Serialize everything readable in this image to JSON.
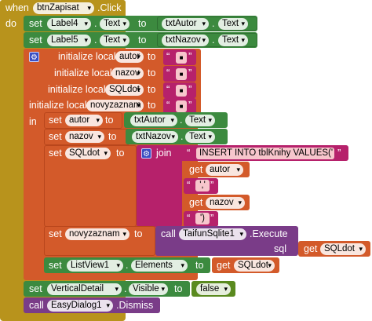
{
  "event": {
    "when_label": "when",
    "component": "btnZapisat",
    "event_name": ".Click",
    "do_label": "do"
  },
  "kw": {
    "set": "set",
    "to": "to",
    "dot": ".",
    "call": "call",
    "in": "in",
    "get": "get",
    "join": "join",
    "init_local": "initialize local",
    "sql": "sql",
    "quote_open": "“",
    "quote_close": "”"
  },
  "set1": {
    "comp": "Label4",
    "prop": "Text",
    "src_comp": "txtAutor",
    "src_prop": "Text"
  },
  "set2": {
    "comp": "Label5",
    "prop": "Text",
    "src_comp": "txtNazov",
    "src_prop": "Text"
  },
  "locals": [
    {
      "name": "autor",
      "value": "■"
    },
    {
      "name": "nazov",
      "value": "■"
    },
    {
      "name": "SQLdot",
      "value": "■"
    },
    {
      "name": "novyzaznam",
      "value": "■"
    }
  ],
  "set_autor": {
    "var": "autor",
    "src_comp": "txtAutor",
    "src_prop": "Text"
  },
  "set_nazov": {
    "var": "nazov",
    "src_comp": "txtNazov",
    "src_prop": "Text"
  },
  "set_sql": {
    "var": "SQLdot",
    "join_parts": [
      "INSERT INTO tblKnihy VALUES('",
      "autor",
      "','",
      "nazov",
      "')"
    ]
  },
  "set_novy": {
    "var": "novyzaznam",
    "comp": "TaifunSqlite1",
    "method": ".Execute",
    "arg_name": "sql",
    "arg_var": "SQLdot"
  },
  "set_list": {
    "comp": "ListView1",
    "prop": "Elements",
    "var": "SQLdot"
  },
  "set_vis": {
    "comp": "VerticalDetail",
    "prop": "Visible",
    "value": "false"
  },
  "dismiss": {
    "comp": "EasyDialog1",
    "method": ".Dismiss"
  },
  "colors": {
    "event": "#b8931c",
    "component": "#3c8a3f",
    "variable": "#d35a2a",
    "procedure": "#7a3c88",
    "text": "#b6216b",
    "logic": "#5a8a1f"
  }
}
